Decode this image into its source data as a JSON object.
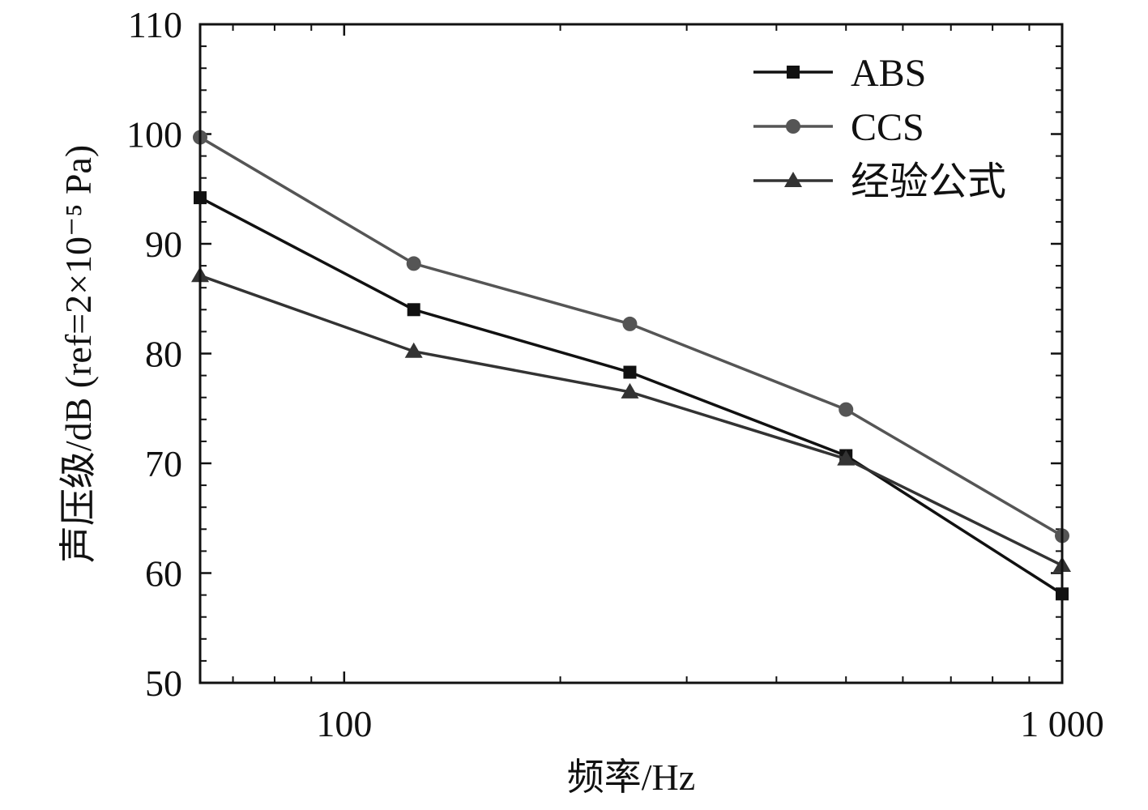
{
  "chart_data": {
    "type": "line",
    "xlabel": "频率/Hz",
    "ylabel": "声压级/dB (ref=2×10⁻⁵ Pa)",
    "xscale": "log",
    "xlim": [
      63,
      1000
    ],
    "ylim": [
      50,
      110
    ],
    "x_ticks": [
      100,
      1000
    ],
    "x_tick_labels": [
      "100",
      "1 000"
    ],
    "y_ticks": [
      50,
      60,
      70,
      80,
      90,
      100,
      110
    ],
    "y_tick_labels": [
      "50",
      "60",
      "70",
      "80",
      "90",
      "100",
      "110"
    ],
    "grid": false,
    "legend_position": "top-right",
    "x": [
      63,
      125,
      250,
      500,
      1000
    ],
    "series": [
      {
        "name": "ABS",
        "values": [
          94.2,
          84.0,
          78.3,
          70.7,
          58.1
        ],
        "color": "#111111",
        "marker": "square"
      },
      {
        "name": "CCS",
        "values": [
          99.7,
          88.2,
          82.7,
          74.9,
          63.4
        ],
        "color": "#555555",
        "marker": "circle"
      },
      {
        "name": "经验公式",
        "values": [
          87.1,
          80.2,
          76.5,
          70.4,
          60.7
        ],
        "color": "#333333",
        "marker": "triangle"
      }
    ]
  }
}
